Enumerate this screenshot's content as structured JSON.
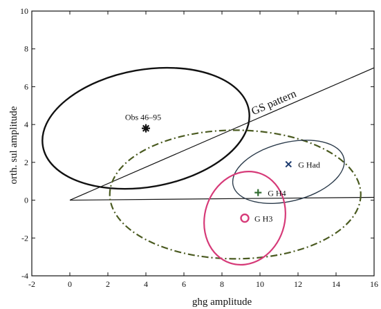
{
  "chart_data": {
    "type": "scatter",
    "title": "",
    "xlabel": "ghg amplitude",
    "ylabel": "orth. sul amplitude",
    "xlim": [
      -2,
      16
    ],
    "ylim": [
      -4,
      10
    ],
    "xticks": [
      "-2",
      "0",
      "2",
      "4",
      "6",
      "8",
      "10",
      "12",
      "14",
      "16"
    ],
    "yticks": [
      "-4",
      "-2",
      "0",
      "2",
      "4",
      "6",
      "8",
      "10"
    ],
    "grid": false,
    "points": [
      {
        "label": "Obs 46–95",
        "x": 4.0,
        "y": 3.8,
        "marker": "asterisk",
        "color": "#111111"
      },
      {
        "label": "G Had",
        "x": 11.5,
        "y": 1.9,
        "marker": "x",
        "color": "#1c3a6e"
      },
      {
        "label": "G H4",
        "x": 9.9,
        "y": 0.4,
        "marker": "plus",
        "color": "#2e6b2e"
      },
      {
        "label": "G H3",
        "x": 9.2,
        "y": -0.95,
        "marker": "circle",
        "color": "#d63a78"
      }
    ],
    "ellipses": [
      {
        "center": [
          4.0,
          3.8
        ],
        "radii": [
          5.5,
          3.1
        ],
        "angle_deg": 10,
        "style": "solid",
        "color": "#111111",
        "width": 2.4
      },
      {
        "center": [
          8.7,
          0.3
        ],
        "radii": [
          6.6,
          3.4
        ],
        "angle_deg": 0,
        "style": "dashdot",
        "color": "#4a5a20",
        "width": 2.2
      },
      {
        "center": [
          11.5,
          1.5
        ],
        "radii": [
          3.0,
          1.55
        ],
        "angle_deg": 14,
        "style": "solid",
        "color": "#2a3a4a",
        "width": 1.4
      },
      {
        "center": [
          9.2,
          -0.95
        ],
        "radii": [
          2.1,
          2.5
        ],
        "angle_deg": -18,
        "style": "solid",
        "color": "#d63a78",
        "width": 2.2
      }
    ],
    "lines": [
      {
        "label": "GS pattern",
        "from": [
          0,
          0
        ],
        "to": [
          16,
          7.0
        ]
      },
      {
        "label": "",
        "from": [
          0,
          0
        ],
        "to": [
          16,
          0.15
        ]
      }
    ],
    "annotation": {
      "text": "GS pattern",
      "x": 10.8,
      "y": 5.0
    }
  }
}
